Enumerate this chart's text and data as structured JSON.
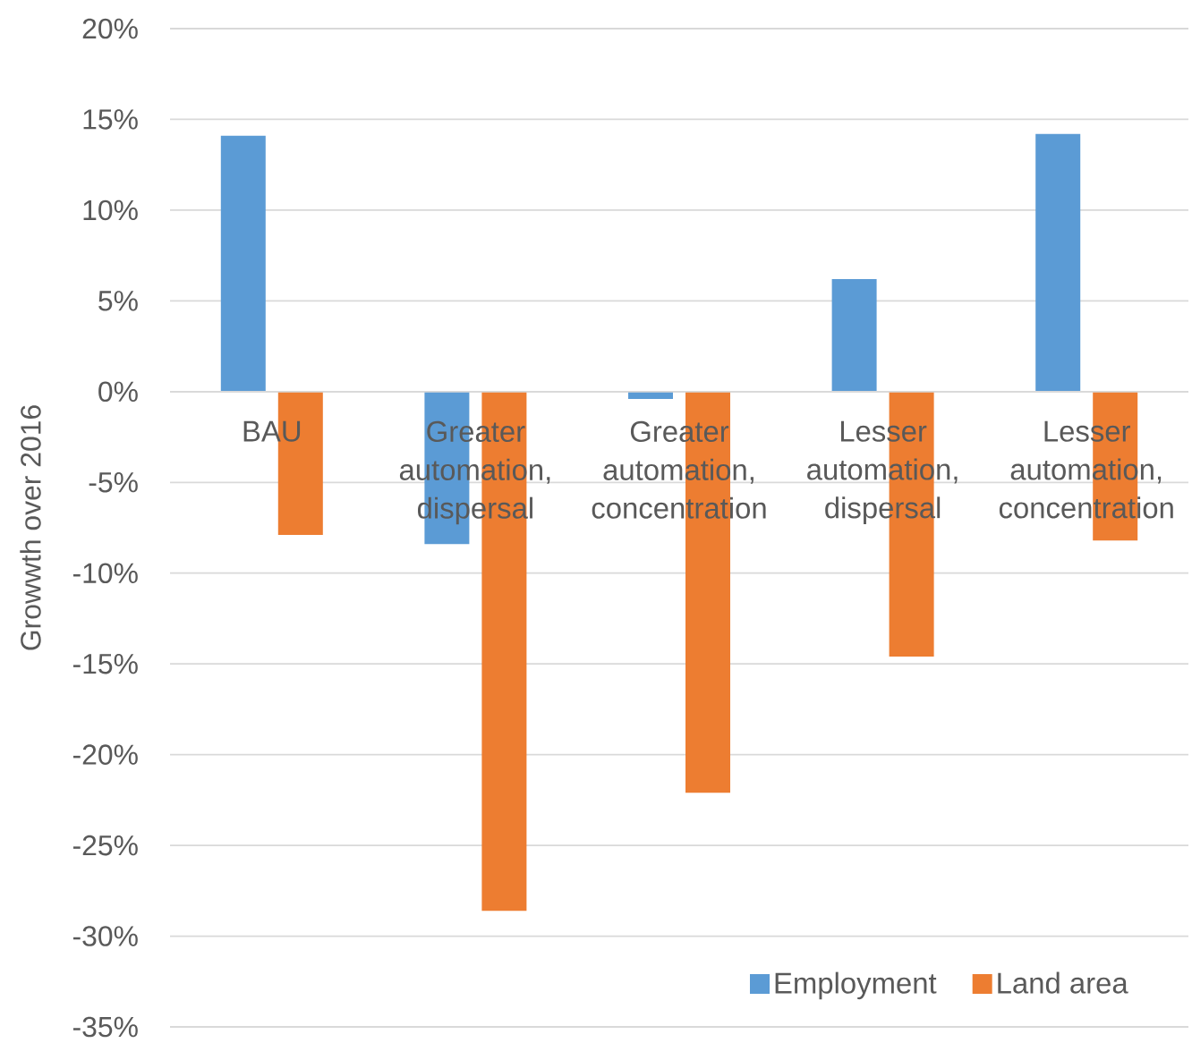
{
  "chart_data": {
    "type": "bar",
    "ylabel": "Growwth over 2016",
    "categories": [
      "BAU",
      "Greater automation, dispersal",
      "Greater automation, concentration",
      "Lesser automation, dispersal",
      "Lesser automation, concentration"
    ],
    "series": [
      {
        "name": "Employment",
        "color": "#5b9bd5",
        "values": [
          14.1,
          -8.4,
          -0.4,
          6.2,
          14.2
        ]
      },
      {
        "name": "Land area",
        "color": "#ed7d31",
        "values": [
          -7.9,
          -28.6,
          -22.1,
          -14.6,
          -8.2
        ]
      }
    ],
    "ylim": [
      -35,
      20
    ],
    "yticks": [
      {
        "value": -35,
        "label": "-35%"
      },
      {
        "value": -30,
        "label": "-30%"
      },
      {
        "value": -25,
        "label": "-25%"
      },
      {
        "value": -20,
        "label": "-20%"
      },
      {
        "value": -15,
        "label": "-15%"
      },
      {
        "value": -10,
        "label": "-10%"
      },
      {
        "value": -5,
        "label": "-5%"
      },
      {
        "value": 0,
        "label": "0%"
      },
      {
        "value": 5,
        "label": "5%"
      },
      {
        "value": 10,
        "label": "10%"
      },
      {
        "value": 15,
        "label": "15%"
      },
      {
        "value": 20,
        "label": "20%"
      }
    ],
    "grid": "y",
    "legend": "bottom right"
  }
}
